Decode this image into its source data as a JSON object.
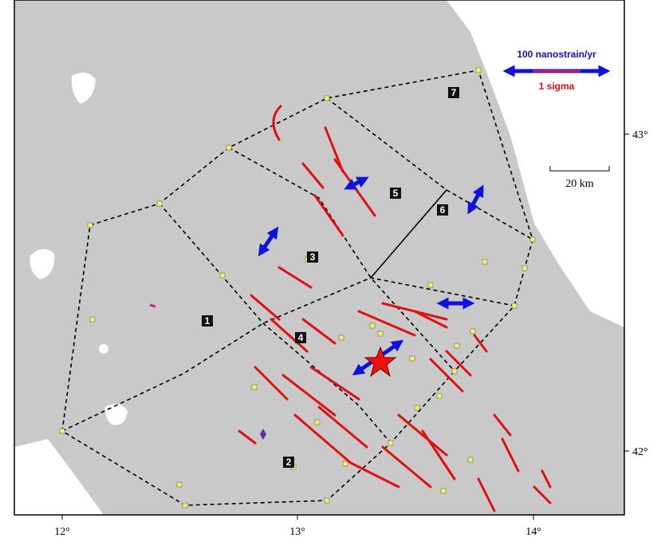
{
  "map": {
    "x_labels": [
      "12°",
      "13°",
      "14°"
    ],
    "y_labels": [
      "43°",
      "42°"
    ],
    "scale_label": "20 km",
    "legend": {
      "arrow_label": "100 nanostrain/yr",
      "sigma_label": "1 sigma"
    },
    "regions": [
      "1",
      "2",
      "3",
      "4",
      "5",
      "6",
      "7"
    ]
  }
}
